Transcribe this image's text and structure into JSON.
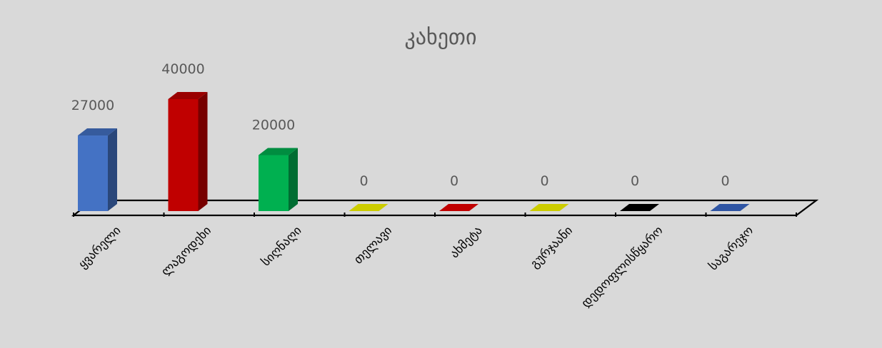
{
  "chart_data": {
    "type": "bar",
    "title": "კახეთი",
    "categories": [
      "ყვარელი",
      "ლაგოდეხი",
      "სიღნაღი",
      "თელავი",
      "ახმეტა",
      "გურჯაანი",
      "დედოფლისწყარო",
      "საგარეჯო"
    ],
    "values": [
      27000,
      40000,
      20000,
      0,
      0,
      0,
      0,
      0
    ],
    "data_labels": [
      "27000",
      "40000",
      "20000",
      "0",
      "0",
      "0",
      "0",
      "0"
    ],
    "colors": [
      "#4472c4",
      "#c00000",
      "#00b050",
      "#cccc00",
      "#c00000",
      "#cccc00",
      "#000000",
      "#2f55a4"
    ],
    "ylim": [
      0,
      40000
    ],
    "grid": false,
    "legend": "none",
    "style": "3d-column"
  }
}
